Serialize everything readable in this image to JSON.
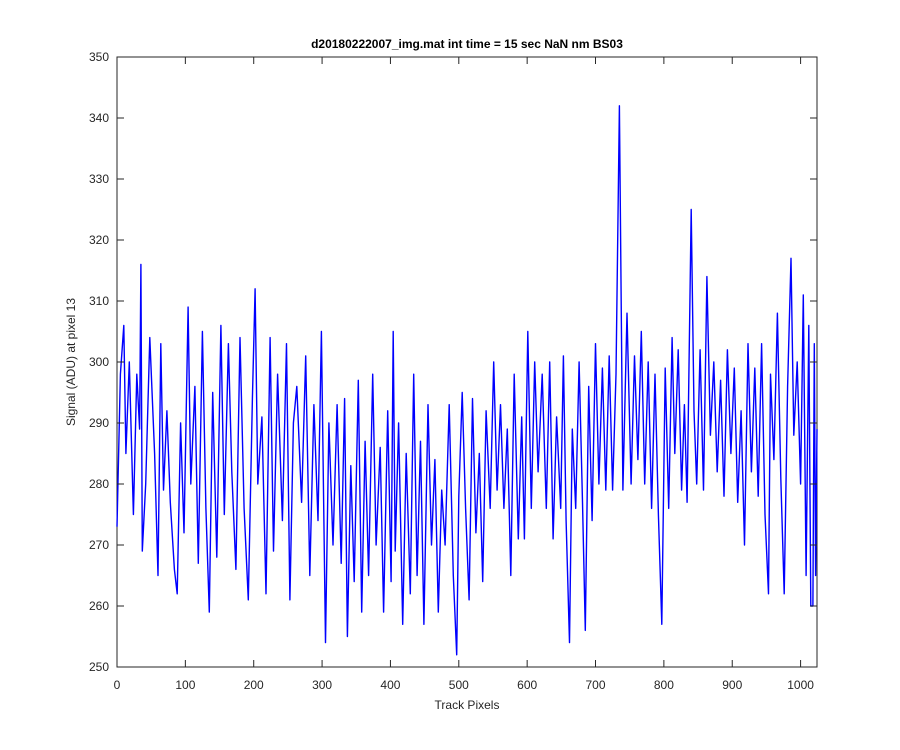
{
  "chart_data": {
    "type": "line",
    "title": "d20180222007_img.mat int time = 15 sec  NaN nm BS03",
    "xlabel": "Track Pixels",
    "ylabel": "Signal (ADU) at pixel 13",
    "xlim": [
      0,
      1024
    ],
    "ylim": [
      250,
      350
    ],
    "x_ticks": [
      0,
      100,
      200,
      300,
      400,
      500,
      600,
      700,
      800,
      900,
      1000
    ],
    "y_ticks": [
      250,
      260,
      270,
      280,
      290,
      300,
      310,
      320,
      330,
      340,
      350
    ],
    "grid": false,
    "legend": "none",
    "series": [
      {
        "color": "#0000ff",
        "points": [
          [
            0,
            273
          ],
          [
            5,
            298
          ],
          [
            10,
            306
          ],
          [
            13,
            285
          ],
          [
            18,
            300
          ],
          [
            24,
            275
          ],
          [
            29,
            298
          ],
          [
            33,
            289
          ],
          [
            35,
            316
          ],
          [
            37,
            269
          ],
          [
            42,
            280
          ],
          [
            48,
            304
          ],
          [
            55,
            285
          ],
          [
            60,
            265
          ],
          [
            64,
            303
          ],
          [
            68,
            279
          ],
          [
            73,
            292
          ],
          [
            78,
            277
          ],
          [
            84,
            266
          ],
          [
            88,
            262
          ],
          [
            93,
            290
          ],
          [
            98,
            272
          ],
          [
            104,
            309
          ],
          [
            108,
            280
          ],
          [
            114,
            296
          ],
          [
            119,
            267
          ],
          [
            125,
            305
          ],
          [
            130,
            276
          ],
          [
            135,
            259
          ],
          [
            140,
            295
          ],
          [
            146,
            268
          ],
          [
            152,
            306
          ],
          [
            157,
            275
          ],
          [
            163,
            303
          ],
          [
            168,
            282
          ],
          [
            174,
            266
          ],
          [
            180,
            304
          ],
          [
            186,
            276
          ],
          [
            192,
            261
          ],
          [
            198,
            294
          ],
          [
            202,
            312
          ],
          [
            206,
            280
          ],
          [
            212,
            291
          ],
          [
            218,
            262
          ],
          [
            224,
            304
          ],
          [
            229,
            269
          ],
          [
            235,
            298
          ],
          [
            242,
            274
          ],
          [
            248,
            303
          ],
          [
            253,
            261
          ],
          [
            258,
            290
          ],
          [
            263,
            296
          ],
          [
            270,
            277
          ],
          [
            276,
            301
          ],
          [
            282,
            265
          ],
          [
            288,
            293
          ],
          [
            294,
            274
          ],
          [
            299,
            305
          ],
          [
            305,
            254
          ],
          [
            310,
            290
          ],
          [
            316,
            270
          ],
          [
            322,
            293
          ],
          [
            328,
            267
          ],
          [
            333,
            294
          ],
          [
            337,
            255
          ],
          [
            342,
            283
          ],
          [
            347,
            264
          ],
          [
            353,
            297
          ],
          [
            358,
            259
          ],
          [
            363,
            287
          ],
          [
            368,
            265
          ],
          [
            374,
            298
          ],
          [
            379,
            270
          ],
          [
            385,
            286
          ],
          [
            390,
            259
          ],
          [
            396,
            292
          ],
          [
            401,
            264
          ],
          [
            404,
            305
          ],
          [
            407,
            269
          ],
          [
            412,
            290
          ],
          [
            418,
            257
          ],
          [
            423,
            285
          ],
          [
            429,
            262
          ],
          [
            434,
            298
          ],
          [
            439,
            265
          ],
          [
            444,
            287
          ],
          [
            449,
            257
          ],
          [
            455,
            293
          ],
          [
            460,
            270
          ],
          [
            465,
            284
          ],
          [
            470,
            259
          ],
          [
            475,
            279
          ],
          [
            480,
            270
          ],
          [
            486,
            293
          ],
          [
            492,
            265
          ],
          [
            497,
            252
          ],
          [
            500,
            278
          ],
          [
            505,
            295
          ],
          [
            510,
            276
          ],
          [
            515,
            261
          ],
          [
            520,
            294
          ],
          [
            525,
            272
          ],
          [
            530,
            285
          ],
          [
            535,
            264
          ],
          [
            540,
            292
          ],
          [
            546,
            276
          ],
          [
            551,
            300
          ],
          [
            556,
            279
          ],
          [
            561,
            293
          ],
          [
            566,
            276
          ],
          [
            571,
            289
          ],
          [
            576,
            265
          ],
          [
            581,
            298
          ],
          [
            587,
            271
          ],
          [
            592,
            291
          ],
          [
            596,
            271
          ],
          [
            601,
            305
          ],
          [
            606,
            276
          ],
          [
            611,
            300
          ],
          [
            616,
            282
          ],
          [
            622,
            298
          ],
          [
            628,
            276
          ],
          [
            633,
            300
          ],
          [
            638,
            271
          ],
          [
            643,
            291
          ],
          [
            649,
            276
          ],
          [
            653,
            301
          ],
          [
            657,
            274
          ],
          [
            662,
            254
          ],
          [
            666,
            289
          ],
          [
            671,
            276
          ],
          [
            676,
            300
          ],
          [
            681,
            277
          ],
          [
            685,
            256
          ],
          [
            690,
            296
          ],
          [
            695,
            274
          ],
          [
            700,
            303
          ],
          [
            705,
            280
          ],
          [
            710,
            299
          ],
          [
            715,
            279
          ],
          [
            720,
            301
          ],
          [
            725,
            279
          ],
          [
            730,
            298
          ],
          [
            735,
            342
          ],
          [
            740,
            279
          ],
          [
            746,
            308
          ],
          [
            752,
            280
          ],
          [
            757,
            301
          ],
          [
            762,
            284
          ],
          [
            767,
            305
          ],
          [
            772,
            280
          ],
          [
            777,
            300
          ],
          [
            782,
            276
          ],
          [
            787,
            298
          ],
          [
            792,
            275
          ],
          [
            797,
            257
          ],
          [
            802,
            299
          ],
          [
            807,
            276
          ],
          [
            812,
            304
          ],
          [
            816,
            285
          ],
          [
            821,
            302
          ],
          [
            826,
            279
          ],
          [
            830,
            293
          ],
          [
            834,
            277
          ],
          [
            840,
            325
          ],
          [
            844,
            292
          ],
          [
            848,
            280
          ],
          [
            853,
            302
          ],
          [
            858,
            279
          ],
          [
            863,
            314
          ],
          [
            868,
            288
          ],
          [
            873,
            300
          ],
          [
            878,
            282
          ],
          [
            883,
            297
          ],
          [
            888,
            278
          ],
          [
            893,
            302
          ],
          [
            898,
            285
          ],
          [
            903,
            299
          ],
          [
            908,
            277
          ],
          [
            913,
            292
          ],
          [
            918,
            270
          ],
          [
            923,
            303
          ],
          [
            928,
            282
          ],
          [
            933,
            299
          ],
          [
            938,
            278
          ],
          [
            943,
            303
          ],
          [
            948,
            275
          ],
          [
            953,
            262
          ],
          [
            956,
            298
          ],
          [
            961,
            284
          ],
          [
            966,
            308
          ],
          [
            971,
            281
          ],
          [
            976,
            262
          ],
          [
            981,
            296
          ],
          [
            986,
            317
          ],
          [
            990,
            288
          ],
          [
            995,
            300
          ],
          [
            1000,
            280
          ],
          [
            1004,
            311
          ],
          [
            1008,
            265
          ],
          [
            1012,
            306
          ],
          [
            1015,
            260
          ],
          [
            1018,
            260
          ],
          [
            1020,
            303
          ],
          [
            1022,
            265
          ],
          [
            1024,
            289
          ]
        ]
      }
    ]
  }
}
